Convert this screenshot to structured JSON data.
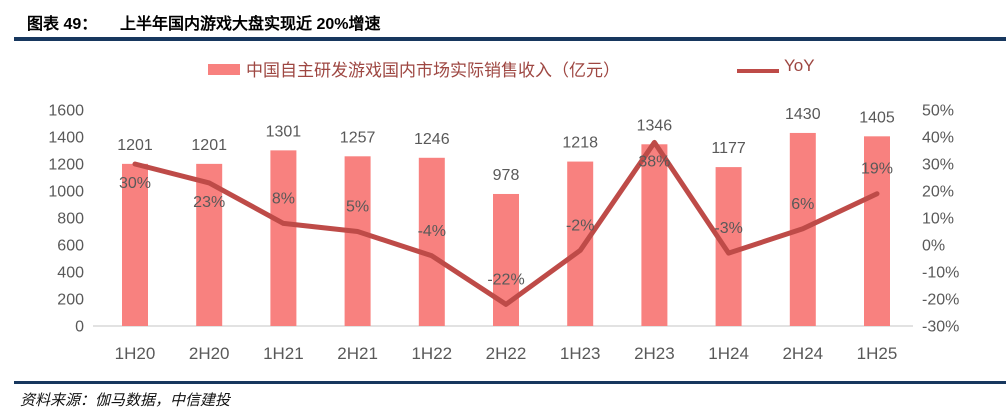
{
  "header": {
    "figure_label": "图表 49：",
    "title": "上半年国内游戏大盘实现近 20%增速"
  },
  "legend": {
    "bar_label": "中国自主研发游戏国内市场实际销售收入（亿元）",
    "line_label": "YoY"
  },
  "chart_data": {
    "type": "bar+line",
    "categories": [
      "1H20",
      "2H20",
      "1H21",
      "2H21",
      "1H22",
      "2H22",
      "1H23",
      "2H23",
      "1H24",
      "2H24",
      "1H25"
    ],
    "series": [
      {
        "name": "中国自主研发游戏国内市场实际销售收入（亿元）",
        "chart_type": "bar",
        "axis": "left",
        "unit": "亿元",
        "values": [
          1201,
          1201,
          1301,
          1257,
          1246,
          978,
          1218,
          1346,
          1177,
          1430,
          1405
        ]
      },
      {
        "name": "YoY",
        "chart_type": "line",
        "axis": "right",
        "unit": "%",
        "values": [
          30,
          23,
          8,
          5,
          -4,
          -22,
          -2,
          38,
          -3,
          6,
          19
        ],
        "labels": [
          "30%",
          "23%",
          "8%",
          "5%",
          "-4%",
          "-22%",
          "-2%",
          "38%",
          "-3%",
          "6%",
          "19%"
        ]
      }
    ],
    "left_axis": {
      "min": 0,
      "max": 1600,
      "step": 200,
      "tick_labels": [
        "0",
        "200",
        "400",
        "600",
        "800",
        "1000",
        "1200",
        "1400",
        "1600"
      ]
    },
    "right_axis": {
      "min": -30,
      "max": 50,
      "step": 10,
      "tick_labels": [
        "-30%",
        "-20%",
        "-10%",
        "0%",
        "10%",
        "20%",
        "30%",
        "40%",
        "50%"
      ]
    },
    "label_placement": [
      "below",
      "below",
      "above",
      "above",
      "above",
      "above",
      "above",
      "below",
      "above",
      "above",
      "above"
    ],
    "grid": false,
    "legend_position": "top",
    "title": "上半年国内游戏大盘实现近 20%增速"
  },
  "footer": {
    "source": "资料来源：伽马数据，中信建投"
  },
  "colors": {
    "bar": "#F8817F",
    "line": "#BE4B48",
    "legend_text": "#9E4742",
    "axis_text": "#595959",
    "data_label_text": "#595959",
    "header_rule": "#17375E",
    "baseline": "#D9D9D9",
    "title_text": "#000000"
  }
}
